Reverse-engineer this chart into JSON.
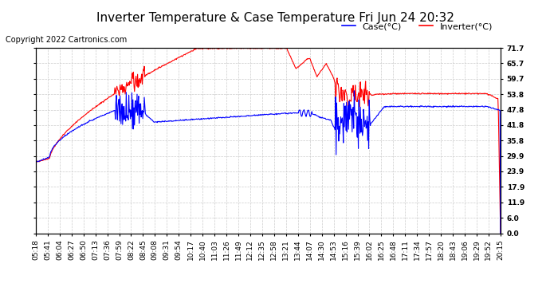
{
  "title": "Inverter Temperature & Case Temperature Fri Jun 24 20:32",
  "copyright": "Copyright 2022 Cartronics.com",
  "legend_case": "Case(°C)",
  "legend_inverter": "Inverter(°C)",
  "bg_color": "#ffffff",
  "plot_bg_color": "#ffffff",
  "grid_color": "#cccccc",
  "case_color": "blue",
  "inverter_color": "red",
  "yticks": [
    0.0,
    6.0,
    11.9,
    17.9,
    23.9,
    29.9,
    35.8,
    41.8,
    47.8,
    53.8,
    59.7,
    65.7,
    71.7
  ],
  "ylim": [
    0.0,
    71.7
  ],
  "xtick_labels": [
    "05:18",
    "05:41",
    "06:04",
    "06:27",
    "06:50",
    "07:13",
    "07:36",
    "07:59",
    "08:22",
    "08:45",
    "09:08",
    "09:31",
    "09:54",
    "10:17",
    "10:40",
    "11:03",
    "11:26",
    "11:49",
    "12:12",
    "12:35",
    "12:58",
    "13:21",
    "13:44",
    "14:07",
    "14:30",
    "14:53",
    "15:16",
    "15:39",
    "16:02",
    "16:25",
    "16:48",
    "17:11",
    "17:34",
    "17:57",
    "18:20",
    "18:43",
    "19:06",
    "19:29",
    "19:52",
    "20:15"
  ],
  "title_fontsize": 11,
  "copyright_fontsize": 7,
  "legend_fontsize": 8,
  "tick_fontsize": 6.5,
  "line_width": 0.8
}
